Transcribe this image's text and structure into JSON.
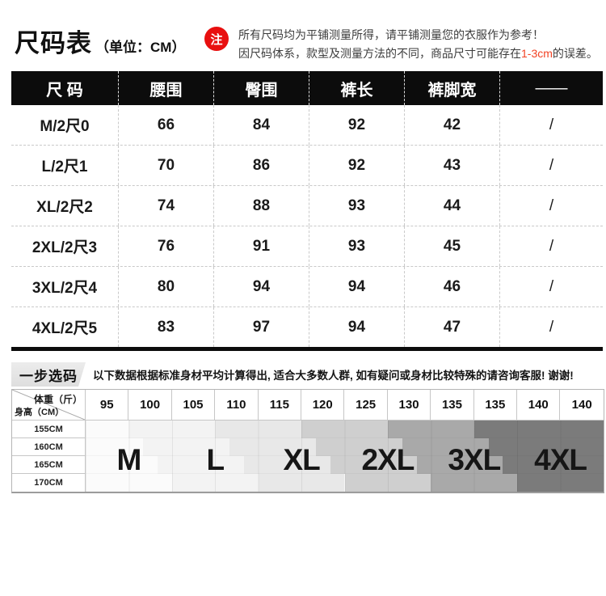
{
  "colors": {
    "table_header_bg": "#0c0c0c",
    "note_badge_red": "#e80f0f",
    "tolerance_red": "#f24223"
  },
  "header": {
    "title": "尺码表",
    "unit_label": "（单位：CM）",
    "note_badge": "注",
    "note_line1": "所有尺码均为平铺测量所得，请平铺测量您的衣服作为参考！",
    "note_line2_prefix": "因尺码体系，款型及测量方法的不同，商品尺寸可能存在",
    "note_line2_highlight": "1-3cm",
    "note_line2_suffix": "的误差。"
  },
  "size_table": {
    "columns": [
      "尺 码",
      "腰围",
      "臀围",
      "裤长",
      "裤脚宽",
      "——"
    ],
    "rows": [
      {
        "size": "M/2尺0",
        "waist": "66",
        "hip": "84",
        "length": "92",
        "leg_opening": "42",
        "extra": "/"
      },
      {
        "size": "L/2尺1",
        "waist": "70",
        "hip": "86",
        "length": "92",
        "leg_opening": "43",
        "extra": "/"
      },
      {
        "size": "XL/2尺2",
        "waist": "74",
        "hip": "88",
        "length": "93",
        "leg_opening": "44",
        "extra": "/"
      },
      {
        "size": "2XL/2尺3",
        "waist": "76",
        "hip": "91",
        "length": "93",
        "leg_opening": "45",
        "extra": "/"
      },
      {
        "size": "3XL/2尺4",
        "waist": "80",
        "hip": "94",
        "length": "94",
        "leg_opening": "46",
        "extra": "/"
      },
      {
        "size": "4XL/2尺5",
        "waist": "83",
        "hip": "97",
        "length": "94",
        "leg_opening": "47",
        "extra": "/"
      }
    ]
  },
  "size_picker": {
    "badge": "一步选码",
    "description": "以下数据根据标准身材平均计算得出, 适合大多数人群, 如有疑问或身材比较特殊的请咨询客服! 谢谢!",
    "weight_label": "体重（斤）",
    "height_label": "身高（CM）",
    "weights": [
      "95",
      "100",
      "105",
      "110",
      "115",
      "120",
      "125",
      "130",
      "135",
      "135",
      "140",
      "140"
    ],
    "heights": [
      "155CM",
      "160CM",
      "165CM",
      "170CM"
    ],
    "sizes": [
      {
        "label": "M",
        "color": "#fbfbfb"
      },
      {
        "label": "L",
        "color": "#f3f3f3"
      },
      {
        "label": "XL",
        "color": "#e8e8e8"
      },
      {
        "label": "2XL",
        "color": "#cfcfcf"
      },
      {
        "label": "3XL",
        "color": "#a9a9a9"
      },
      {
        "label": "4XL",
        "color": "#7b7b7b"
      }
    ]
  }
}
